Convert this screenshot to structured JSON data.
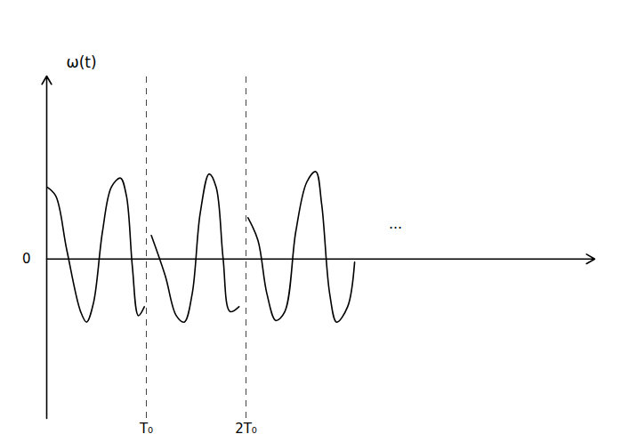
{
  "chart_data": {
    "type": "line",
    "y_label": "ω(t)",
    "x": [
      0,
      0.09,
      0.2,
      0.34,
      0.4,
      0.47,
      0.56,
      0.65,
      0.74,
      0.8,
      0.86,
      0.92,
      0.98,
      1.0,
      1.05,
      1.19,
      1.3,
      1.38,
      1.46,
      1.54,
      1.63,
      1.7,
      1.77,
      1.84,
      1.93,
      2.0,
      2.02,
      2.12,
      2.21,
      2.3,
      2.39,
      2.5,
      2.61,
      2.7,
      2.76,
      2.84,
      2.91,
      3.02,
      3.09
    ],
    "values": [
      0.89,
      0.78,
      0.12,
      -0.65,
      -0.78,
      -0.54,
      0.34,
      0.89,
      1.0,
      0.78,
      -0.1,
      -0.7,
      -0.59,
      null,
      0.29,
      -0.21,
      -0.7,
      -0.78,
      -0.43,
      0.56,
      1.05,
      0.89,
      0.01,
      -0.65,
      -0.59,
      null,
      0.51,
      0.23,
      -0.43,
      -0.76,
      -0.65,
      0.34,
      0.95,
      1.08,
      0.67,
      -0.43,
      -0.78,
      -0.59,
      -0.04
    ],
    "color": "#000000",
    "xlim": [
      0,
      5.5
    ],
    "ylim": [
      -1.97,
      2.26
    ],
    "xticks": [
      {
        "value": 1,
        "label": "T₀"
      },
      {
        "value": 2,
        "label": "2T₀"
      }
    ],
    "yticks": [
      0
    ],
    "grid": true,
    "annotations": [
      {
        "text": "...",
        "x": 3.5,
        "y": 0.43
      }
    ]
  }
}
